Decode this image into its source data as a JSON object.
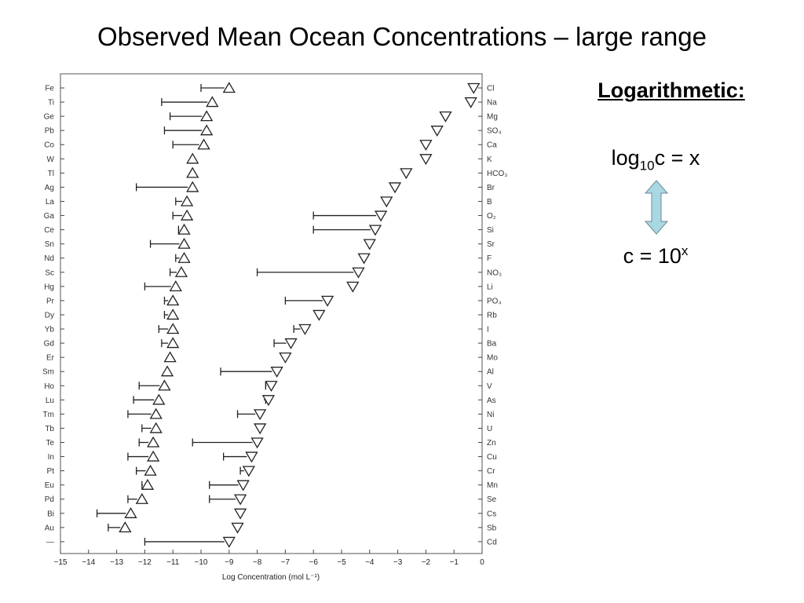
{
  "slide": {
    "title": "Observed Mean Ocean Concentrations – large range",
    "side_heading": "Logarithmetic:",
    "formula_log": {
      "prefix": "log",
      "sub": "10",
      "rest": "c = x"
    },
    "formula_exp": {
      "prefix": "c = 10",
      "sup": "x"
    },
    "arrow_color": "#a8d8e4"
  },
  "chart_data": {
    "type": "scatter",
    "xlabel": "Log Concentration (mol L⁻¹)",
    "xlim": [
      -15,
      0
    ],
    "xticks": [
      -15,
      -14,
      -13,
      -12,
      -11,
      -10,
      -9,
      -8,
      -7,
      -6,
      -5,
      -4,
      -3,
      -2,
      -1,
      0
    ],
    "xtick_labels": [
      "−15",
      "−14",
      "−13",
      "−12",
      "−11",
      "−10",
      "−9",
      "−8",
      "−7",
      "−6",
      "−5",
      "−4",
      "−3",
      "−2",
      "−1",
      "0"
    ],
    "series": [
      {
        "marker": "triangle-up",
        "axis_side": "left",
        "points": [
          {
            "label": "Fe",
            "x": -9.0,
            "range_min": -10.0
          },
          {
            "label": "Ti",
            "x": -9.6,
            "range_min": -11.4
          },
          {
            "label": "Ge",
            "x": -9.8,
            "range_min": -11.1
          },
          {
            "label": "Pb",
            "x": -9.8,
            "range_min": -11.3
          },
          {
            "label": "Co",
            "x": -9.9,
            "range_min": -11.0
          },
          {
            "label": "W",
            "x": -10.3
          },
          {
            "label": "Tl",
            "x": -10.3
          },
          {
            "label": "Ag",
            "x": -10.3,
            "range_min": -12.3
          },
          {
            "label": "La",
            "x": -10.5,
            "range_min": -10.9
          },
          {
            "label": "Ga",
            "x": -10.5,
            "range_min": -11.0
          },
          {
            "label": "Ce",
            "x": -10.6,
            "range_min": -10.8
          },
          {
            "label": "Sn",
            "x": -10.6,
            "range_min": -11.8
          },
          {
            "label": "Nd",
            "x": -10.6,
            "range_min": -10.9
          },
          {
            "label": "Sc",
            "x": -10.7,
            "range_min": -11.1
          },
          {
            "label": "Hg",
            "x": -10.9,
            "range_min": -12.0
          },
          {
            "label": "Pr",
            "x": -11.0,
            "range_min": -11.3
          },
          {
            "label": "Dy",
            "x": -11.0,
            "range_min": -11.3
          },
          {
            "label": "Yb",
            "x": -11.0,
            "range_min": -11.5
          },
          {
            "label": "Gd",
            "x": -11.0,
            "range_min": -11.4
          },
          {
            "label": "Er",
            "x": -11.1
          },
          {
            "label": "Sm",
            "x": -11.2
          },
          {
            "label": "Ho",
            "x": -11.3,
            "range_min": -12.2
          },
          {
            "label": "Lu",
            "x": -11.5,
            "range_min": -12.4
          },
          {
            "label": "Tm",
            "x": -11.6,
            "range_min": -12.6
          },
          {
            "label": "Tb",
            "x": -11.6,
            "range_min": -12.1
          },
          {
            "label": "Te",
            "x": -11.7,
            "range_min": -12.2
          },
          {
            "label": "In",
            "x": -11.7,
            "range_min": -12.6
          },
          {
            "label": "Pt",
            "x": -11.8,
            "range_min": -12.3
          },
          {
            "label": "Eu",
            "x": -11.9,
            "range_min": -12.1
          },
          {
            "label": "Pd",
            "x": -12.1,
            "range_min": -12.6
          },
          {
            "label": "Bi",
            "x": -12.5,
            "range_min": -13.7
          },
          {
            "label": "Au",
            "x": -12.7,
            "range_min": -13.3
          },
          {
            "label": "—"
          }
        ]
      },
      {
        "marker": "triangle-down",
        "axis_side": "right",
        "points": [
          {
            "label": "Cl",
            "x": -0.3
          },
          {
            "label": "Na",
            "x": -0.4
          },
          {
            "label": "Mg",
            "x": -1.3
          },
          {
            "label": "SO₄",
            "x": -1.6
          },
          {
            "label": "Ca",
            "x": -2.0
          },
          {
            "label": "K",
            "x": -2.0
          },
          {
            "label": "HCO₃",
            "x": -2.7
          },
          {
            "label": "Br",
            "x": -3.1
          },
          {
            "label": "B",
            "x": -3.4
          },
          {
            "label": "O₂",
            "x": -3.6,
            "range_min": -6.0
          },
          {
            "label": "Si",
            "x": -3.8,
            "range_min": -6.0
          },
          {
            "label": "Sr",
            "x": -4.0
          },
          {
            "label": "F",
            "x": -4.2
          },
          {
            "label": "NO₃",
            "x": -4.4,
            "range_min": -8.0
          },
          {
            "label": "Li",
            "x": -4.6
          },
          {
            "label": "PO₄",
            "x": -5.5,
            "range_min": -7.0
          },
          {
            "label": "Rb",
            "x": -5.8
          },
          {
            "label": "I",
            "x": -6.3,
            "range_min": -6.7
          },
          {
            "label": "Ba",
            "x": -6.8,
            "range_min": -7.4
          },
          {
            "label": "Mo",
            "x": -7.0
          },
          {
            "label": "Al",
            "x": -7.3,
            "range_min": -9.3
          },
          {
            "label": "V",
            "x": -7.5,
            "range_min": -7.7
          },
          {
            "label": "As",
            "x": -7.6,
            "range_min": -7.7
          },
          {
            "label": "Ni",
            "x": -7.9,
            "range_min": -8.7
          },
          {
            "label": "U",
            "x": -7.9
          },
          {
            "label": "Zn",
            "x": -8.0,
            "range_min": -10.3
          },
          {
            "label": "Cu",
            "x": -8.2,
            "range_min": -9.2
          },
          {
            "label": "Cr",
            "x": -8.3,
            "range_min": -8.6
          },
          {
            "label": "Mn",
            "x": -8.5,
            "range_min": -9.7
          },
          {
            "label": "Se",
            "x": -8.6,
            "range_min": -9.7
          },
          {
            "label": "Cs",
            "x": -8.6
          },
          {
            "label": "Sb",
            "x": -8.7
          },
          {
            "label": "Cd",
            "x": -9.0,
            "range_min": -12.0
          }
        ]
      }
    ]
  }
}
